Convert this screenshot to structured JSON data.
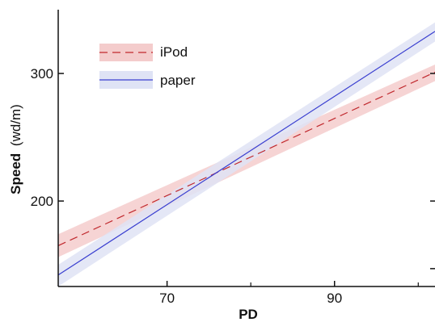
{
  "chart_data": {
    "type": "line",
    "title": "",
    "xlabel": "PD",
    "ylabel_bold": "Speed",
    "ylabel_unit": "(wd/m)",
    "xlim": [
      57,
      102
    ],
    "ylim": [
      133,
      350
    ],
    "xticks": [
      70,
      90
    ],
    "yticks": [
      200,
      300
    ],
    "grid": false,
    "legend_position": "top-left",
    "series": [
      {
        "name": "iPod",
        "style": "dashed",
        "color": "#c0282d",
        "band_color": "#f4cccc",
        "x": [
          57,
          102
        ],
        "y": [
          165,
          301
        ],
        "ci_upper": [
          174,
          307
        ],
        "ci_lower": [
          156,
          294
        ]
      },
      {
        "name": "paper",
        "style": "solid",
        "color": "#3a3fd0",
        "band_color": "#dfe3f5",
        "x": [
          57,
          102
        ],
        "y": [
          142,
          333
        ],
        "ci_upper": [
          150,
          340
        ],
        "ci_lower": [
          133,
          325
        ]
      }
    ]
  }
}
